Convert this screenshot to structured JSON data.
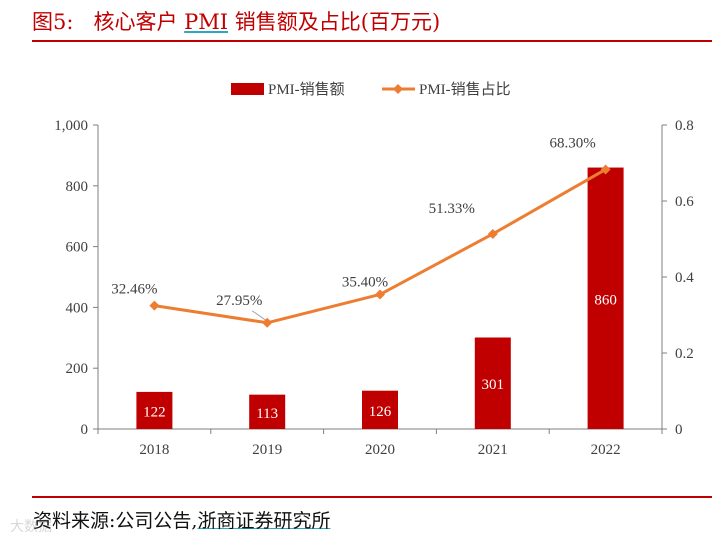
{
  "figure": {
    "label": "图5:",
    "title_pre": "核心客户",
    "title_code": "PMI",
    "title_post": "销售额及占比(百万元)"
  },
  "source": {
    "prefix": "资料来源:公司公告,",
    "org": "浙商证券研究所"
  },
  "watermark": "大数据",
  "chart_data": {
    "type": "bar+line",
    "categories": [
      "2018",
      "2019",
      "2020",
      "2021",
      "2022"
    ],
    "series": [
      {
        "name": "PMI-销售额",
        "kind": "bar",
        "axis": "left",
        "color": "#c00000",
        "values": [
          122,
          113,
          126,
          301,
          860
        ],
        "labels": [
          "122",
          "113",
          "126",
          "301",
          "860"
        ]
      },
      {
        "name": "PMI-销售占比",
        "kind": "line",
        "axis": "right",
        "color": "#ed7d31",
        "values": [
          0.3246,
          0.2795,
          0.354,
          0.5133,
          0.683
        ],
        "labels": [
          "32.46%",
          "27.95%",
          "35.40%",
          "51.33%",
          "68.30%"
        ]
      }
    ],
    "y_left": {
      "min": 0,
      "max": 1000,
      "ticks": [
        "0",
        "200",
        "400",
        "600",
        "800",
        "1,000"
      ],
      "tick_values": [
        0,
        200,
        400,
        600,
        800,
        1000
      ]
    },
    "y_right": {
      "min": 0,
      "max": 0.8,
      "ticks": [
        "0",
        "0.2",
        "0.4",
        "0.6",
        "0.8"
      ],
      "tick_values": [
        0,
        0.2,
        0.4,
        0.6,
        0.8
      ]
    },
    "legend_position": "top-center",
    "grid": false
  }
}
